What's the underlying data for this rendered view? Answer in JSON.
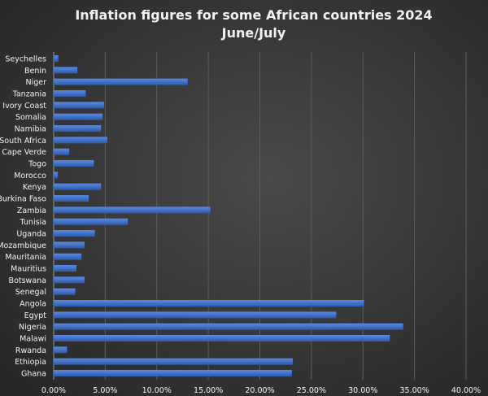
{
  "chart_data": {
    "type": "bar",
    "orientation": "horizontal",
    "title": "Inflation figures for some African countries 2024",
    "subtitle": "June/July",
    "xlabel": "",
    "ylabel": "",
    "xlim": [
      0,
      40
    ],
    "x_ticks": [
      "0.00%",
      "5.00%",
      "10.00%",
      "15.00%",
      "20.00%",
      "25.00%",
      "30.00%",
      "35.00%",
      "40.00%"
    ],
    "grid": true,
    "bar_color": "#4472c4",
    "categories": [
      "Seychelles",
      "Benin",
      "Niger",
      "Tanzania",
      "Ivory Coast",
      "Somalia",
      "Namibia",
      "South Africa",
      "Cape Verde",
      "Togo",
      "Morocco",
      "Kenya",
      "Burkina Faso",
      "Zambia",
      "Tunisia",
      "Uganda",
      "Mozambique",
      "Mauritania",
      "Mauritius",
      "Botswana",
      "Senegal",
      "Angola",
      "Egypt",
      "Nigeria",
      "Malawi",
      "Rwanda",
      "Ethiopia",
      "Ghana"
    ],
    "values": [
      0.45,
      2.3,
      13.0,
      3.1,
      4.9,
      4.75,
      4.6,
      5.2,
      1.5,
      3.9,
      0.4,
      4.6,
      3.4,
      15.2,
      7.2,
      4.0,
      3.0,
      2.7,
      2.2,
      3.0,
      2.1,
      30.1,
      27.4,
      33.9,
      32.6,
      1.3,
      23.2,
      23.1
    ]
  }
}
